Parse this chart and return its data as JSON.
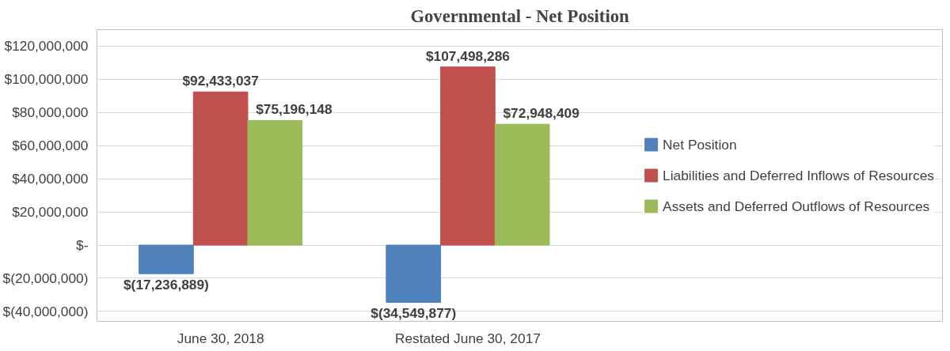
{
  "chart_data": {
    "type": "bar",
    "title": "Governmental - Net Position",
    "categories": [
      "June 30, 2018",
      "Restated June 30, 2017"
    ],
    "series": [
      {
        "name": "Net Position",
        "color": "#4f81bd",
        "values": [
          -17236889,
          -34549877
        ],
        "value_labels": [
          "$(17,236,889)",
          "$(34,549,877)"
        ]
      },
      {
        "name": "Liabilities and Deferred Inflows of Resources",
        "color": "#c0504d",
        "values": [
          92433037,
          107498286
        ],
        "value_labels": [
          "$92,433,037",
          "$107,498,286"
        ]
      },
      {
        "name": "Assets and Deferred Outflows of Resources",
        "color": "#9bbb59",
        "values": [
          75196148,
          72948409
        ],
        "value_labels": [
          "$75,196,148",
          "$72,948,409"
        ]
      }
    ],
    "ylim": [
      -46000000,
      130000000
    ],
    "yticks": [
      {
        "value": -40000000,
        "label": "$(40,000,000)"
      },
      {
        "value": -20000000,
        "label": "$(20,000,000)"
      },
      {
        "value": 0,
        "label": "$-"
      },
      {
        "value": 20000000,
        "label": "$20,000,000"
      },
      {
        "value": 40000000,
        "label": "$40,000,000"
      },
      {
        "value": 60000000,
        "label": "$60,000,000"
      },
      {
        "value": 80000000,
        "label": "$80,000,000"
      },
      {
        "value": 100000000,
        "label": "$100,000,000"
      },
      {
        "value": 120000000,
        "label": "$120,000,000"
      }
    ],
    "grid": "y",
    "legend": "right"
  }
}
